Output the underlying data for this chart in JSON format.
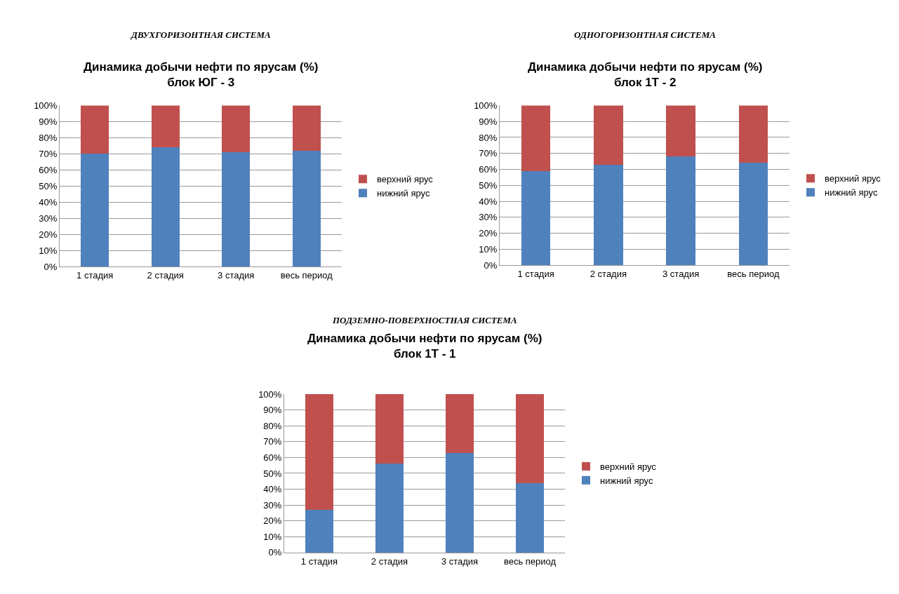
{
  "chart_data": [
    {
      "type": "bar",
      "subtitle": "ДВУХГОРИЗОНТНАЯ СИСТЕМА",
      "title": "Динамика добычи нефти по ярусам (%)\nблок ЮГ - 3",
      "categories": [
        "1 стадия",
        "2 стадия",
        "3 стадия",
        "весь период"
      ],
      "stacked": true,
      "legend": "right",
      "grid": "y",
      "ylim": [
        0,
        100
      ],
      "yticks": [
        {
          "value": 0,
          "label": "0%"
        },
        {
          "value": 10,
          "label": "10%"
        },
        {
          "value": 20,
          "label": "20%"
        },
        {
          "value": 30,
          "label": "30%"
        },
        {
          "value": 40,
          "label": "40%"
        },
        {
          "value": 50,
          "label": "50%"
        },
        {
          "value": 60,
          "label": "60%"
        },
        {
          "value": 70,
          "label": "70%"
        },
        {
          "value": 80,
          "label": "80%"
        },
        {
          "value": 90,
          "label": "90%"
        },
        {
          "value": 100,
          "label": "100%"
        }
      ],
      "series": [
        {
          "name": "нижний ярус",
          "color": "#4f81bd",
          "values": [
            70,
            74,
            71,
            72
          ]
        },
        {
          "name": "верхний ярус",
          "color": "#c0504d",
          "values": [
            30,
            26,
            29,
            28
          ]
        }
      ]
    },
    {
      "type": "bar",
      "subtitle": "ОДНОГОРИЗОНТНАЯ СИСТЕМА",
      "title": "Динамика добычи нефти по ярусам (%)\nблок 1Т - 2",
      "categories": [
        "1 стадия",
        "2 стадия",
        "3 стадия",
        "весь период"
      ],
      "stacked": true,
      "legend": "right",
      "grid": "y",
      "ylim": [
        0,
        100
      ],
      "yticks": [
        {
          "value": 0,
          "label": "0%"
        },
        {
          "value": 10,
          "label": "10%"
        },
        {
          "value": 20,
          "label": "20%"
        },
        {
          "value": 30,
          "label": "30%"
        },
        {
          "value": 40,
          "label": "40%"
        },
        {
          "value": 50,
          "label": "50%"
        },
        {
          "value": 60,
          "label": "60%"
        },
        {
          "value": 70,
          "label": "70%"
        },
        {
          "value": 80,
          "label": "80%"
        },
        {
          "value": 90,
          "label": "90%"
        },
        {
          "value": 100,
          "label": "100%"
        }
      ],
      "series": [
        {
          "name": "нижний ярус",
          "color": "#4f81bd",
          "values": [
            59,
            63,
            68,
            64
          ]
        },
        {
          "name": "верхний ярус",
          "color": "#c0504d",
          "values": [
            41,
            37,
            32,
            36
          ]
        }
      ]
    },
    {
      "type": "bar",
      "subtitle": "ПОДЗЕМНО-ПОВЕРХНОСТНАЯ СИСТЕМА",
      "title": "Динамика добычи нефти по ярусам (%)\nблок 1Т - 1",
      "categories": [
        "1 стадия",
        "2 стадия",
        "3 стадия",
        "весь период"
      ],
      "stacked": true,
      "legend": "right",
      "grid": "y",
      "ylim": [
        0,
        100
      ],
      "yticks": [
        {
          "value": 0,
          "label": "0%"
        },
        {
          "value": 10,
          "label": "10%"
        },
        {
          "value": 20,
          "label": "20%"
        },
        {
          "value": 30,
          "label": "30%"
        },
        {
          "value": 40,
          "label": "40%"
        },
        {
          "value": 50,
          "label": "50%"
        },
        {
          "value": 60,
          "label": "60%"
        },
        {
          "value": 70,
          "label": "70%"
        },
        {
          "value": 80,
          "label": "80%"
        },
        {
          "value": 90,
          "label": "90%"
        },
        {
          "value": 100,
          "label": "100%"
        }
      ],
      "series": [
        {
          "name": "нижний ярус",
          "color": "#4f81bd",
          "values": [
            27,
            56,
            63,
            44
          ]
        },
        {
          "name": "верхний ярус",
          "color": "#c0504d",
          "values": [
            73,
            44,
            37,
            56
          ]
        }
      ]
    }
  ]
}
